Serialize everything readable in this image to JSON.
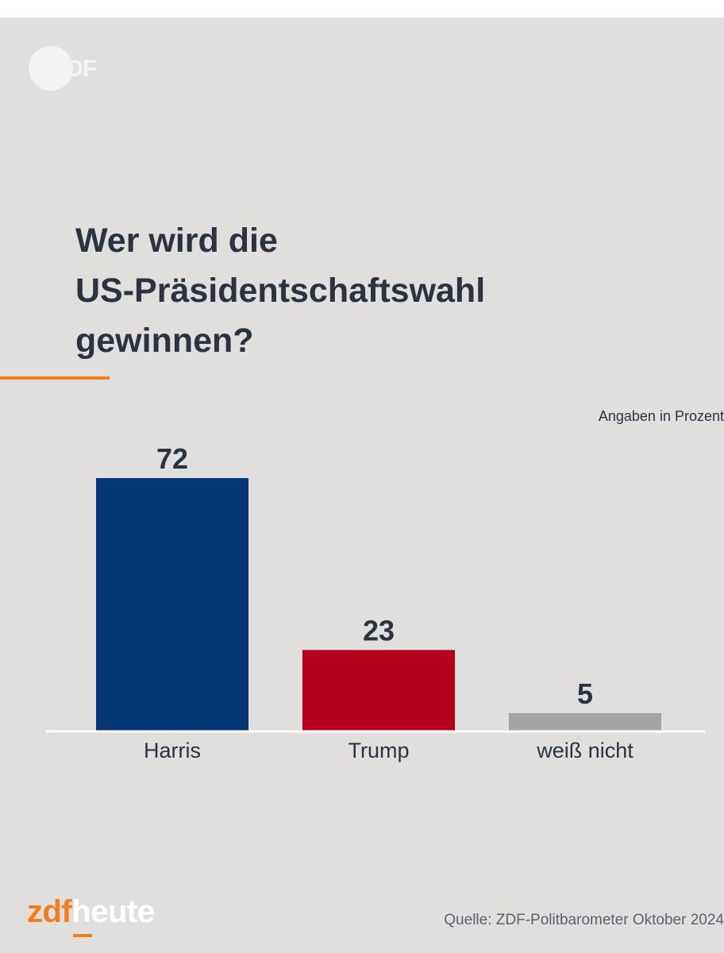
{
  "header": {
    "logo_text": "ZDF"
  },
  "chart_data": {
    "type": "bar",
    "title": "Wer wird die\nUS-Präsidentschaftswahl\ngewinnen?",
    "unit_note": "Angaben in Prozent",
    "categories": [
      "Harris",
      "Trump",
      "weiß nicht"
    ],
    "values": [
      72,
      23,
      5
    ],
    "value_labels": [
      "72",
      "23",
      "5"
    ],
    "colors": [
      "#043675",
      "#b5001d",
      "#a4a4a4"
    ],
    "ylim": [
      0,
      72
    ],
    "grid": false,
    "legend": "none"
  },
  "footer": {
    "brand_zdf": "zdf",
    "brand_heute": "heute",
    "source": "Quelle: ZDF-Politbarometer Oktober 2024"
  },
  "theme": {
    "background": "#e1dfde",
    "text": "#2b3340",
    "accent": "#f07d1e"
  }
}
